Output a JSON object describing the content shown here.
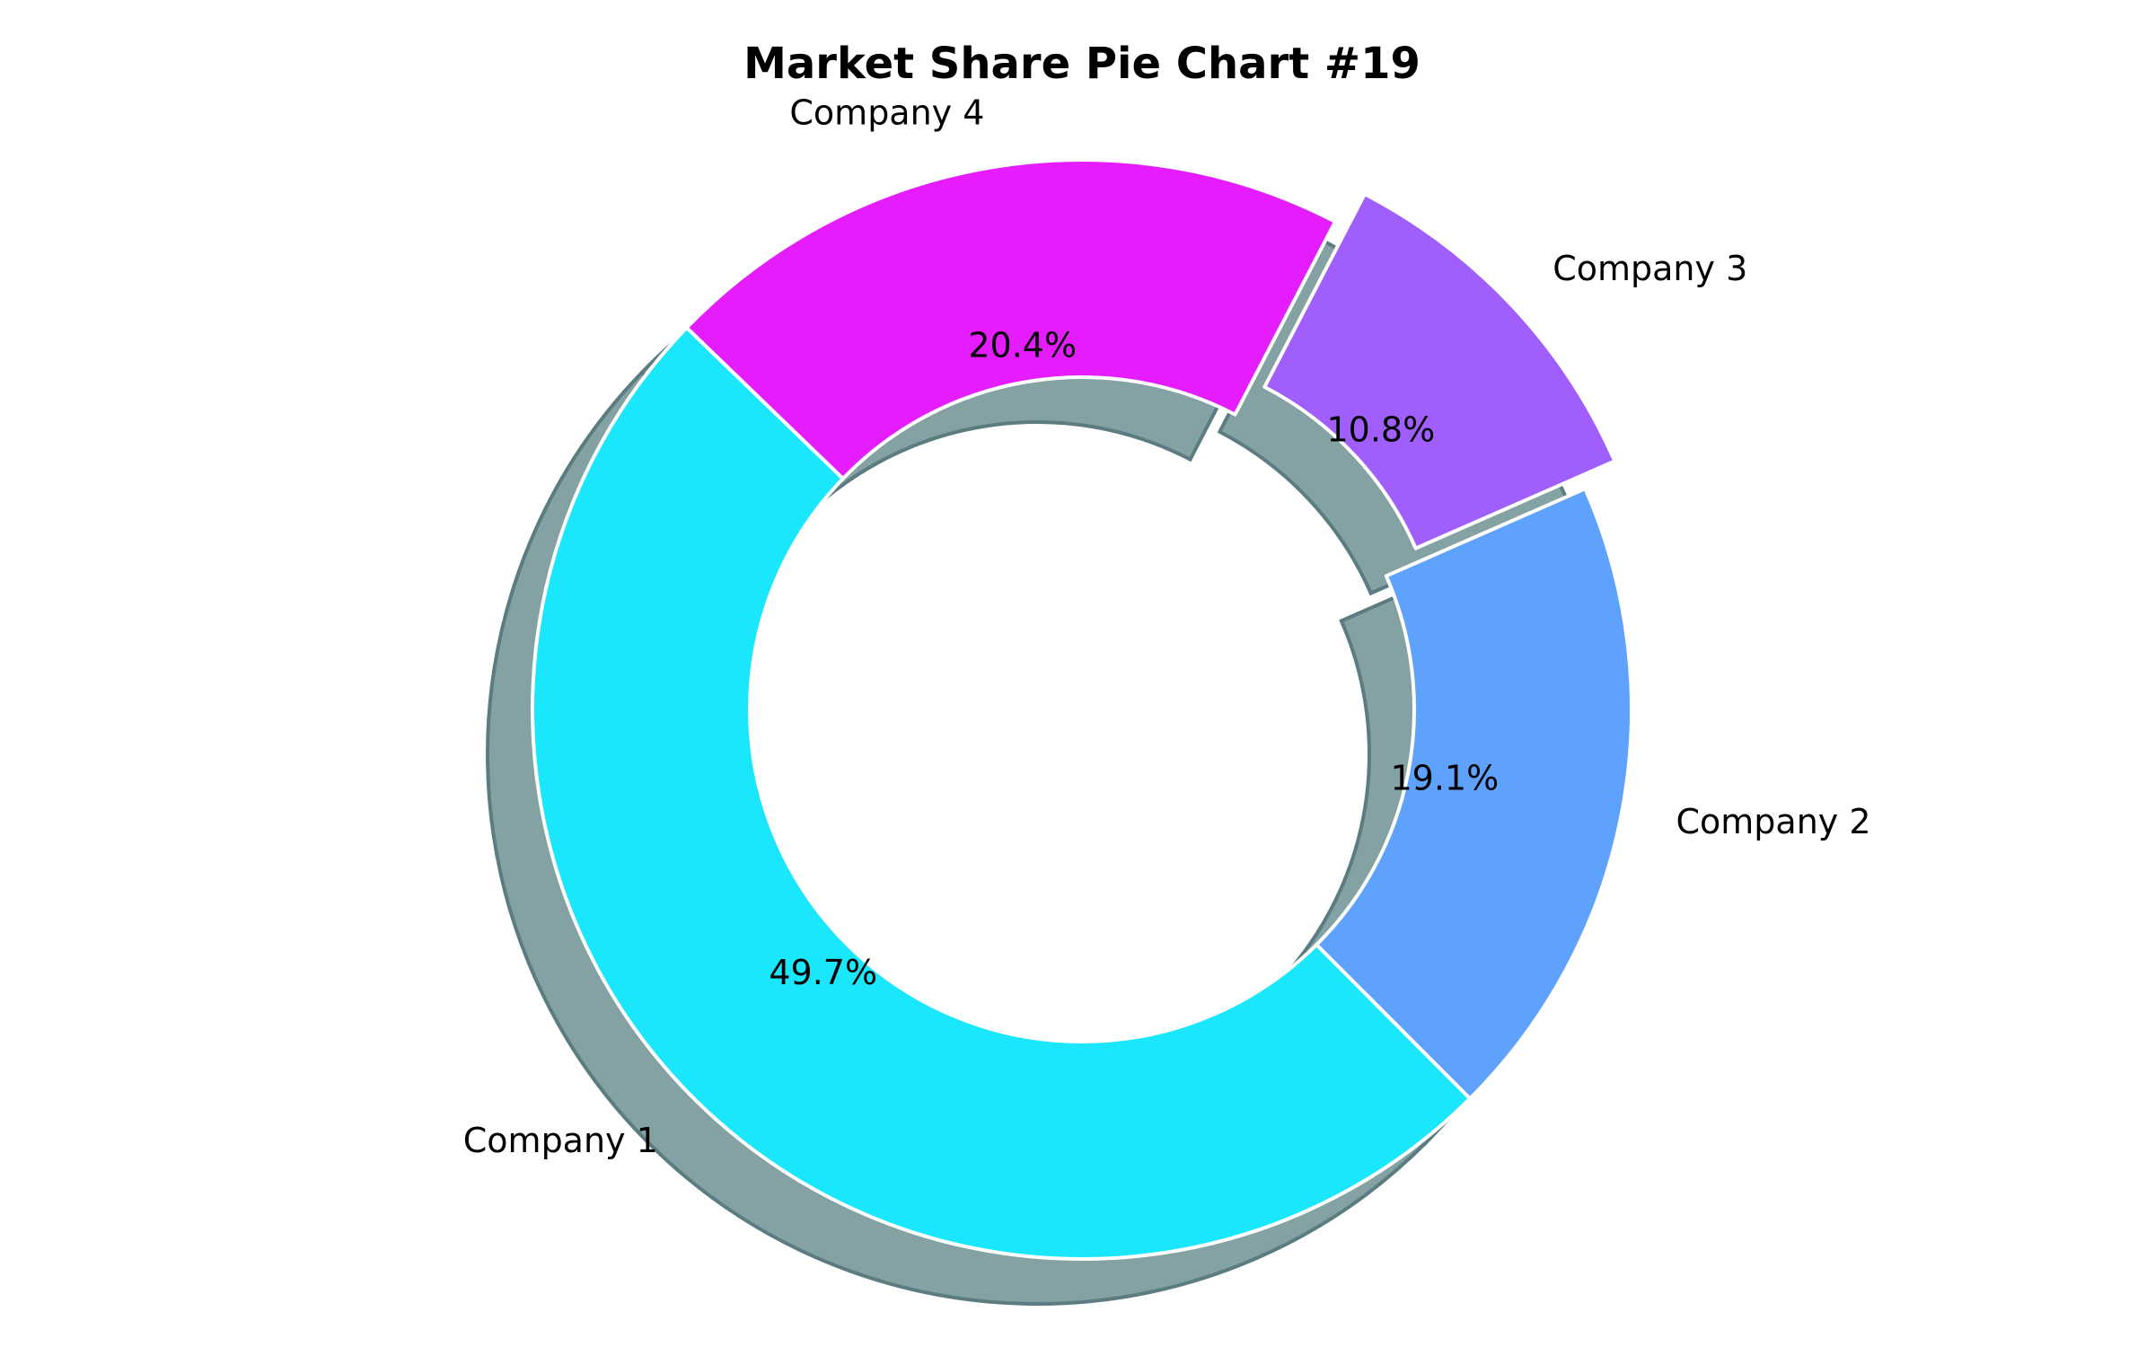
{
  "chart_data": {
    "type": "pie",
    "title": "Market Share Pie Chart #19",
    "style": "donut",
    "shadow": true,
    "start_angle_deg": 136,
    "direction": "counterclockwise",
    "categories": [
      "Company 1",
      "Company 2",
      "Company 3",
      "Company 4"
    ],
    "values": [
      49.7,
      19.1,
      10.8,
      20.4
    ],
    "value_labels": [
      "49.7%",
      "19.1%",
      "10.8%",
      "20.4%"
    ],
    "exploded": [
      false,
      false,
      true,
      false
    ],
    "colors": [
      "#1ae6fc",
      "#5ea2fd",
      "#a05efd",
      "#e51cfd"
    ],
    "edge_color": "#ffffff",
    "shadow_color": "#84a1a3"
  }
}
